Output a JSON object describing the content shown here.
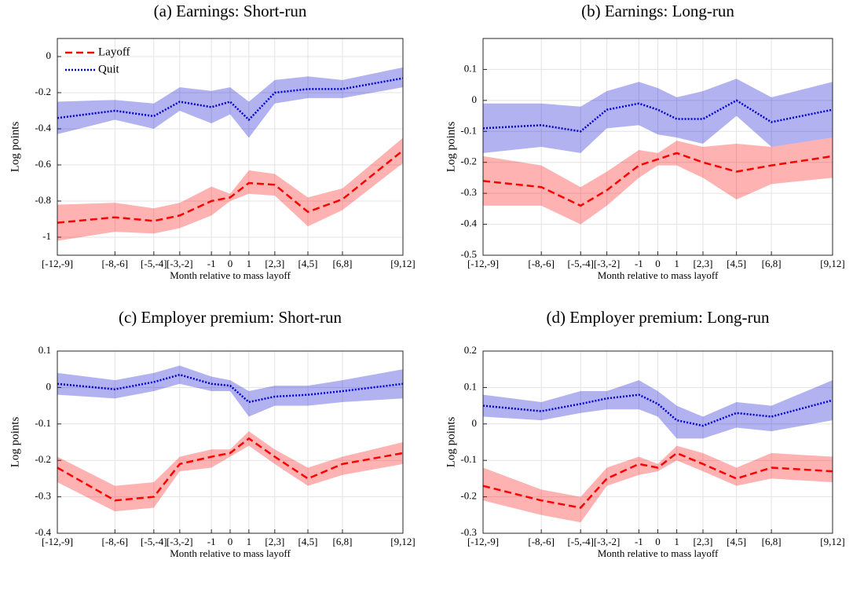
{
  "chart_data": [
    {
      "type": "line",
      "title": "(a) Earnings: Short-run",
      "xlabel": "Month relative to mass layoff",
      "ylabel": "Log points",
      "x": [
        -12,
        -8,
        -5.3,
        -3.5,
        -1.3,
        0,
        1.3,
        3.1,
        5.4,
        7.8,
        12
      ],
      "xlim": [
        -12,
        12
      ],
      "xticks": [
        {
          "value": -12,
          "label": "[-12,-9]"
        },
        {
          "value": -8,
          "label": "[-8,-6]"
        },
        {
          "value": -5.3,
          "label": "[-5,-4]"
        },
        {
          "value": -3.5,
          "label": "[-3,-2]"
        },
        {
          "value": -1.3,
          "label": "-1"
        },
        {
          "value": 0,
          "label": "0"
        },
        {
          "value": 1.3,
          "label": "1"
        },
        {
          "value": 3.1,
          "label": "[2,3]"
        },
        {
          "value": 5.4,
          "label": "[4,5]"
        },
        {
          "value": 7.8,
          "label": "[6,8]"
        },
        {
          "value": 12,
          "label": "[9,12]"
        }
      ],
      "ylim": [
        -1.1,
        0.1
      ],
      "yticks": [
        -1,
        -0.8,
        -0.6,
        -0.4,
        -0.2,
        0
      ],
      "grid": true,
      "legend": "upper left",
      "series": [
        {
          "name": "Layoff",
          "color": "#ff0000",
          "line_style": "dashed",
          "values": [
            -0.92,
            -0.89,
            -0.91,
            -0.88,
            -0.8,
            -0.78,
            -0.7,
            -0.71,
            -0.86,
            -0.79,
            -0.52
          ],
          "lower": [
            -1.02,
            -0.97,
            -0.98,
            -0.95,
            -0.88,
            -0.8,
            -0.76,
            -0.77,
            -0.94,
            -0.85,
            -0.59
          ],
          "upper": [
            -0.82,
            -0.81,
            -0.84,
            -0.81,
            -0.72,
            -0.76,
            -0.63,
            -0.65,
            -0.78,
            -0.73,
            -0.45
          ]
        },
        {
          "name": "Quit",
          "color": "#0000cc",
          "line_style": "dotted",
          "values": [
            -0.34,
            -0.3,
            -0.33,
            -0.25,
            -0.28,
            -0.25,
            -0.35,
            -0.2,
            -0.18,
            -0.18,
            -0.12
          ],
          "lower": [
            -0.43,
            -0.35,
            -0.4,
            -0.3,
            -0.37,
            -0.32,
            -0.45,
            -0.26,
            -0.23,
            -0.23,
            -0.17
          ],
          "upper": [
            -0.25,
            -0.24,
            -0.26,
            -0.17,
            -0.19,
            -0.17,
            -0.25,
            -0.13,
            -0.11,
            -0.13,
            -0.06
          ]
        }
      ]
    },
    {
      "type": "line",
      "title": "(b) Earnings: Long-run",
      "xlabel": "Month relative to mass layoff",
      "ylabel": "Log points",
      "x": [
        -12,
        -8,
        -5.3,
        -3.5,
        -1.3,
        0,
        1.3,
        3.1,
        5.4,
        7.8,
        12
      ],
      "xlim": [
        -12,
        12
      ],
      "xticks": [
        {
          "value": -12,
          "label": "[-12,-9]"
        },
        {
          "value": -8,
          "label": "[-8,-6]"
        },
        {
          "value": -5.3,
          "label": "[-5,-4]"
        },
        {
          "value": -3.5,
          "label": "[-3,-2]"
        },
        {
          "value": -1.3,
          "label": "-1"
        },
        {
          "value": 0,
          "label": "0"
        },
        {
          "value": 1.3,
          "label": "1"
        },
        {
          "value": 3.1,
          "label": "[2,3]"
        },
        {
          "value": 5.4,
          "label": "[4,5]"
        },
        {
          "value": 7.8,
          "label": "[6,8]"
        },
        {
          "value": 12,
          "label": "[9,12]"
        }
      ],
      "ylim": [
        -0.5,
        0.2
      ],
      "yticks": [
        -0.5,
        -0.4,
        -0.3,
        -0.2,
        -0.1,
        0,
        0.1
      ],
      "grid": true,
      "series": [
        {
          "color": "#ff0000",
          "line_style": "dashed",
          "values": [
            -0.26,
            -0.28,
            -0.34,
            -0.29,
            -0.21,
            -0.19,
            -0.17,
            -0.2,
            -0.23,
            -0.21,
            -0.18
          ],
          "lower": [
            -0.34,
            -0.34,
            -0.4,
            -0.34,
            -0.25,
            -0.21,
            -0.21,
            -0.25,
            -0.32,
            -0.27,
            -0.25
          ],
          "upper": [
            -0.18,
            -0.21,
            -0.28,
            -0.23,
            -0.16,
            -0.17,
            -0.13,
            -0.15,
            -0.14,
            -0.15,
            -0.12
          ]
        },
        {
          "color": "#0000cc",
          "line_style": "dotted",
          "values": [
            -0.09,
            -0.08,
            -0.1,
            -0.03,
            -0.01,
            -0.03,
            -0.06,
            -0.06,
            0,
            -0.07,
            -0.03
          ],
          "lower": [
            -0.17,
            -0.15,
            -0.17,
            -0.09,
            -0.08,
            -0.11,
            -0.12,
            -0.14,
            -0.05,
            -0.15,
            -0.12
          ],
          "upper": [
            -0.01,
            -0.01,
            -0.02,
            0.03,
            0.06,
            0.04,
            0.01,
            0.03,
            0.07,
            0.01,
            0.06
          ]
        }
      ]
    },
    {
      "type": "line",
      "title": "(c) Employer premium: Short-run",
      "xlabel": "Month relative to mass layoff",
      "ylabel": "Log points",
      "x": [
        -12,
        -8,
        -5.3,
        -3.5,
        -1.3,
        0,
        1.3,
        3.1,
        5.4,
        7.8,
        12
      ],
      "xlim": [
        -12,
        12
      ],
      "xticks": [
        {
          "value": -12,
          "label": "[-12,-9]"
        },
        {
          "value": -8,
          "label": "[-8,-6]"
        },
        {
          "value": -5.3,
          "label": "[-5,-4]"
        },
        {
          "value": -3.5,
          "label": "[-3,-2]"
        },
        {
          "value": -1.3,
          "label": "-1"
        },
        {
          "value": 0,
          "label": "0"
        },
        {
          "value": 1.3,
          "label": "1"
        },
        {
          "value": 3.1,
          "label": "[2,3]"
        },
        {
          "value": 5.4,
          "label": "[4,5]"
        },
        {
          "value": 7.8,
          "label": "[6,8]"
        },
        {
          "value": 12,
          "label": "[9,12]"
        }
      ],
      "ylim": [
        -0.4,
        0.1
      ],
      "yticks": [
        -0.4,
        -0.3,
        -0.2,
        -0.1,
        0,
        0.1
      ],
      "grid": true,
      "series": [
        {
          "color": "#ff0000",
          "line_style": "dashed",
          "values": [
            -0.22,
            -0.31,
            -0.3,
            -0.21,
            -0.19,
            -0.18,
            -0.14,
            -0.19,
            -0.25,
            -0.21,
            -0.18
          ],
          "lower": [
            -0.26,
            -0.34,
            -0.33,
            -0.23,
            -0.22,
            -0.19,
            -0.16,
            -0.21,
            -0.27,
            -0.24,
            -0.21
          ],
          "upper": [
            -0.19,
            -0.27,
            -0.26,
            -0.19,
            -0.17,
            -0.17,
            -0.12,
            -0.17,
            -0.22,
            -0.19,
            -0.15
          ]
        },
        {
          "color": "#0000cc",
          "line_style": "dotted",
          "values": [
            0.01,
            -0.005,
            0.015,
            0.035,
            0.01,
            0.005,
            -0.04,
            -0.025,
            -0.02,
            -0.01,
            0.01
          ],
          "lower": [
            -0.02,
            -0.03,
            -0.01,
            0.01,
            -0.01,
            -0.01,
            -0.08,
            -0.05,
            -0.05,
            -0.04,
            -0.03
          ],
          "upper": [
            0.04,
            0.02,
            0.04,
            0.06,
            0.03,
            0.02,
            -0.01,
            0.005,
            0.005,
            0.02,
            0.05
          ]
        }
      ]
    },
    {
      "type": "line",
      "title": "(d) Employer premium: Long-run",
      "xlabel": "Month relative to mass layoff",
      "ylabel": "Log points",
      "x": [
        -12,
        -8,
        -5.3,
        -3.5,
        -1.3,
        0,
        1.3,
        3.1,
        5.4,
        7.8,
        12
      ],
      "xlim": [
        -12,
        12
      ],
      "xticks": [
        {
          "value": -12,
          "label": "[-12,-9]"
        },
        {
          "value": -8,
          "label": "[-8,-6]"
        },
        {
          "value": -5.3,
          "label": "[-5,-4]"
        },
        {
          "value": -3.5,
          "label": "[-3,-2]"
        },
        {
          "value": -1.3,
          "label": "-1"
        },
        {
          "value": 0,
          "label": "0"
        },
        {
          "value": 1.3,
          "label": "1"
        },
        {
          "value": 3.1,
          "label": "[2,3]"
        },
        {
          "value": 5.4,
          "label": "[4,5]"
        },
        {
          "value": 7.8,
          "label": "[6,8]"
        },
        {
          "value": 12,
          "label": "[9,12]"
        }
      ],
      "ylim": [
        -0.3,
        0.2
      ],
      "yticks": [
        -0.3,
        -0.2,
        -0.1,
        0,
        0.1,
        0.2
      ],
      "grid": true,
      "series": [
        {
          "color": "#ff0000",
          "line_style": "dashed",
          "values": [
            -0.17,
            -0.21,
            -0.23,
            -0.15,
            -0.11,
            -0.12,
            -0.08,
            -0.11,
            -0.15,
            -0.12,
            -0.13
          ],
          "lower": [
            -0.21,
            -0.25,
            -0.27,
            -0.17,
            -0.14,
            -0.13,
            -0.1,
            -0.13,
            -0.17,
            -0.15,
            -0.16
          ],
          "upper": [
            -0.12,
            -0.18,
            -0.2,
            -0.12,
            -0.09,
            -0.11,
            -0.06,
            -0.08,
            -0.12,
            -0.08,
            -0.09
          ]
        },
        {
          "color": "#0000cc",
          "line_style": "dotted",
          "values": [
            0.05,
            0.035,
            0.055,
            0.07,
            0.08,
            0.055,
            0.01,
            -0.005,
            0.03,
            0.02,
            0.065
          ],
          "lower": [
            0.02,
            0.01,
            0.03,
            0.04,
            0.04,
            0.02,
            -0.04,
            -0.04,
            -0.01,
            -0.02,
            0.01
          ],
          "upper": [
            0.08,
            0.06,
            0.09,
            0.09,
            0.12,
            0.09,
            0.05,
            0.02,
            0.06,
            0.05,
            0.12
          ]
        }
      ]
    }
  ]
}
